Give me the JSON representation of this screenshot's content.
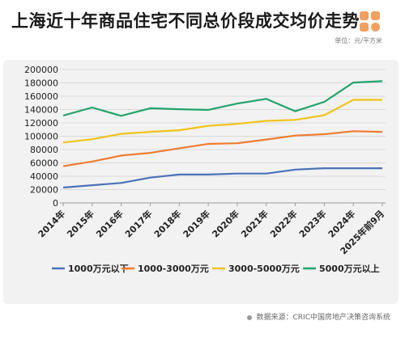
{
  "header": {
    "title": "上海近十年商品住宅不同总价段成交均价走势",
    "unit": "单位：元/平方米"
  },
  "source": "数据来源：CRIC中国房地产决策咨询系统",
  "colors": {
    "logo": "#f0a060"
  },
  "chart_data": {
    "type": "line",
    "categories": [
      "2014年",
      "2015年",
      "2016年",
      "2017年",
      "2018年",
      "2019年",
      "2020年",
      "2021年",
      "2022年",
      "2023年",
      "2024年",
      "2025年前9月"
    ],
    "ylim": [
      0,
      200000
    ],
    "yticks": [
      0,
      20000,
      40000,
      60000,
      80000,
      100000,
      120000,
      140000,
      160000,
      180000,
      200000
    ],
    "grid": true,
    "legend": "bottom",
    "series": [
      {
        "name": "1000万元以下",
        "color": "#4a72b8",
        "values": [
          23000,
          26500,
          30000,
          38000,
          42500,
          42500,
          44000,
          44000,
          50000,
          52000,
          52000,
          52000
        ]
      },
      {
        "name": "1000-3000万元",
        "color": "#ed7d31",
        "values": [
          55000,
          62000,
          71000,
          75000,
          82000,
          88500,
          89500,
          95000,
          101000,
          103000,
          107500,
          106500
        ]
      },
      {
        "name": "3000-5000万元",
        "color": "#f0c419",
        "values": [
          90500,
          95500,
          103500,
          106500,
          109000,
          115500,
          118500,
          123000,
          124500,
          131500,
          154500,
          154500
        ]
      },
      {
        "name": "5000万元以上",
        "color": "#23a36b",
        "values": [
          131000,
          143000,
          130500,
          142000,
          140500,
          139500,
          149000,
          156000,
          137500,
          151500,
          180500,
          182500
        ]
      }
    ]
  }
}
